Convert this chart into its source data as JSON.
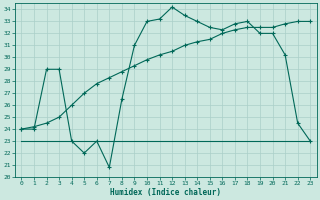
{
  "title": "",
  "xlabel": "Humidex (Indice chaleur)",
  "ylabel": "",
  "bg_color": "#cce8e0",
  "grid_color": "#aacfc8",
  "line_color": "#006858",
  "xlim": [
    -0.5,
    23.5
  ],
  "ylim": [
    20,
    34.5
  ],
  "yticks": [
    20,
    21,
    22,
    23,
    24,
    25,
    26,
    27,
    28,
    29,
    30,
    31,
    32,
    33,
    34
  ],
  "xticks": [
    0,
    1,
    2,
    3,
    4,
    5,
    6,
    7,
    8,
    9,
    10,
    11,
    12,
    13,
    14,
    15,
    16,
    17,
    18,
    19,
    20,
    21,
    22,
    23
  ],
  "series1_x": [
    0,
    1,
    2,
    3,
    4,
    5,
    6,
    7,
    8,
    9,
    10,
    11,
    12,
    13,
    14,
    15,
    16,
    17,
    18,
    19,
    20,
    21,
    22,
    23
  ],
  "series1_y": [
    24.0,
    24.0,
    29.0,
    29.0,
    23.0,
    22.0,
    23.0,
    20.8,
    26.5,
    31.0,
    33.0,
    33.2,
    34.2,
    33.5,
    33.0,
    32.5,
    32.3,
    32.8,
    33.0,
    32.0,
    32.0,
    30.2,
    24.5,
    23.0
  ],
  "series2_x": [
    0,
    1,
    2,
    3,
    4,
    5,
    6,
    7,
    8,
    9,
    10,
    11,
    12,
    13,
    14,
    15,
    16,
    17,
    18,
    19,
    20,
    21,
    22,
    23
  ],
  "series2_y": [
    24.0,
    24.2,
    24.5,
    25.0,
    26.0,
    27.0,
    27.8,
    28.3,
    28.8,
    29.3,
    29.8,
    30.2,
    30.5,
    31.0,
    31.3,
    31.5,
    32.0,
    32.3,
    32.5,
    32.5,
    32.5,
    32.8,
    33.0,
    33.0
  ],
  "series3_x": [
    0,
    3,
    14,
    23
  ],
  "series3_y": [
    23.0,
    23.0,
    23.0,
    23.0
  ]
}
